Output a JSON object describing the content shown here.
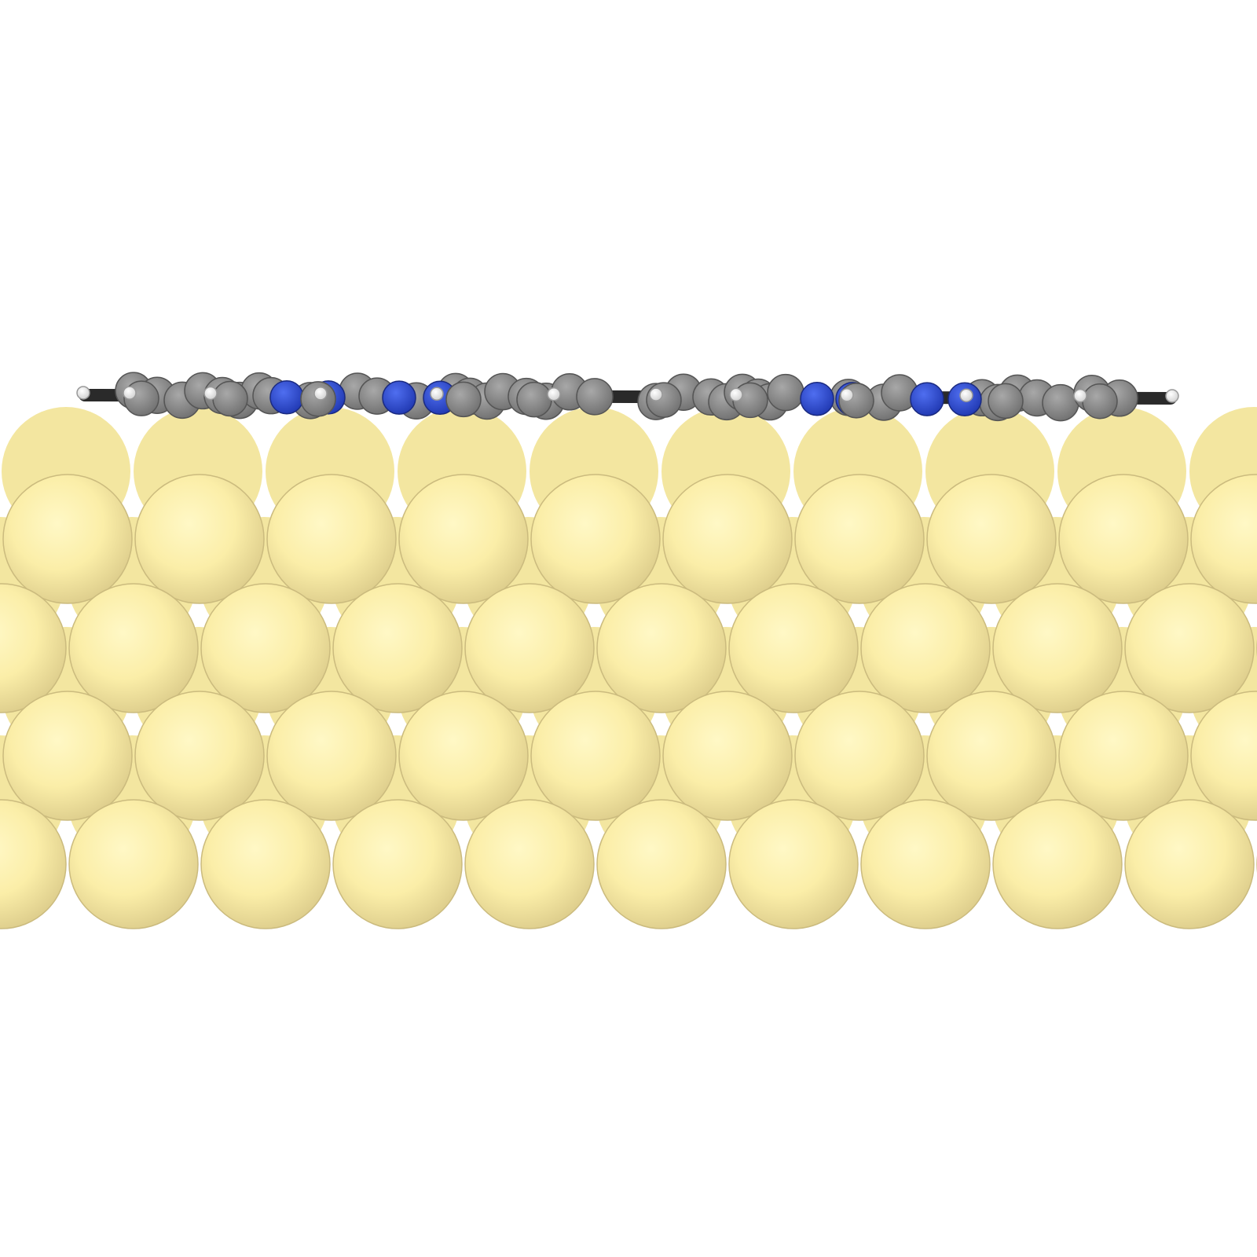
{
  "scene": {
    "background": "#ffffff",
    "molecule": {
      "description_colors": {
        "bond": "#2a2a2a",
        "carbon": "#8a8a8a",
        "nitrogen": "#2f4fd6",
        "hydrogen": "#f4f4f4"
      }
    },
    "surface": {
      "atom_color": "#fff3b0",
      "atom_shadow": "#d9c98a",
      "rows": 4
    }
  }
}
